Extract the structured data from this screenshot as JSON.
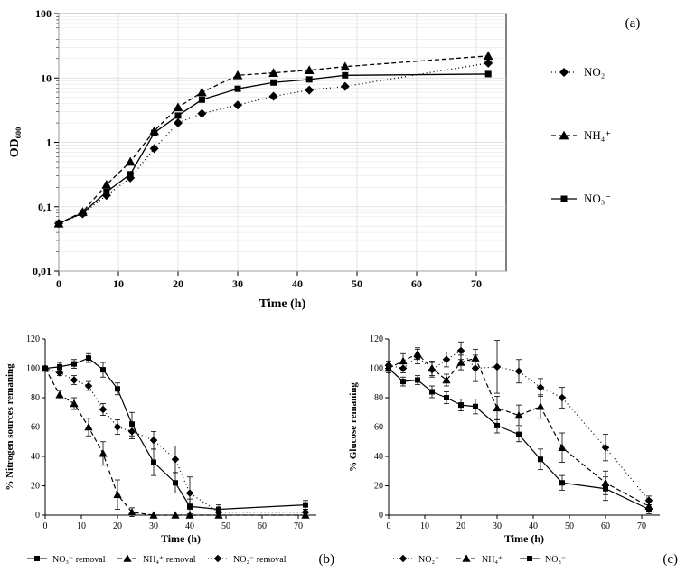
{
  "chartA": {
    "type": "line-log",
    "panel_label": "(a)",
    "xlabel": "Time (h)",
    "ylabel": "OD₆₀₀",
    "xlim": [
      0,
      75
    ],
    "xticks": [
      0,
      10,
      20,
      30,
      40,
      50,
      60,
      70
    ],
    "yticks_log": [
      0.01,
      0.1,
      1,
      10,
      100
    ],
    "ytick_labels": [
      "0,01",
      "0,1",
      "1",
      "10",
      "100"
    ],
    "grid_color": "#d9d9d9",
    "axis_color": "#000000",
    "bg": "#ffffff",
    "series": [
      {
        "name": "NO2-",
        "label": "NO₂⁻",
        "marker": "diamond",
        "dash": "1 3",
        "color": "#000000",
        "x": [
          0,
          4,
          8,
          12,
          16,
          20,
          24,
          30,
          36,
          42,
          48,
          72
        ],
        "y": [
          0.055,
          0.078,
          0.15,
          0.28,
          0.8,
          2.0,
          2.8,
          3.8,
          5.2,
          6.5,
          7.4,
          17.0
        ]
      },
      {
        "name": "NH4+",
        "label": "NH₄⁺",
        "marker": "triangle",
        "dash": "5 3",
        "color": "#000000",
        "x": [
          0,
          4,
          8,
          12,
          16,
          20,
          24,
          30,
          36,
          42,
          48,
          72
        ],
        "y": [
          0.055,
          0.083,
          0.22,
          0.5,
          1.5,
          3.5,
          6.0,
          11.0,
          12.0,
          13.2,
          15.0,
          22.0
        ]
      },
      {
        "name": "NO3-",
        "label": "NO₃⁻",
        "marker": "square",
        "dash": "",
        "color": "#000000",
        "x": [
          0,
          4,
          8,
          12,
          16,
          20,
          24,
          30,
          36,
          42,
          48,
          72
        ],
        "y": [
          0.055,
          0.08,
          0.17,
          0.32,
          1.4,
          2.6,
          4.6,
          6.8,
          8.5,
          9.5,
          11.0,
          11.5
        ]
      }
    ],
    "legend": [
      {
        "marker": "diamond",
        "dash": "1 3",
        "label": "NO₂⁻"
      },
      {
        "marker": "triangle",
        "dash": "5 3",
        "label": "NH₄⁺"
      },
      {
        "marker": "square",
        "dash": "",
        "label": "NO₃⁻"
      }
    ]
  },
  "chartB": {
    "type": "line",
    "panel_label": "(b)",
    "xlabel": "Time (h)",
    "ylabel": "% Nitrogen sources remaning",
    "xlim": [
      0,
      75
    ],
    "ylim": [
      0,
      120
    ],
    "xticks": [
      0,
      10,
      20,
      30,
      40,
      50,
      60,
      70
    ],
    "yticks": [
      0,
      20,
      40,
      60,
      80,
      100,
      120
    ],
    "grid_color": "#e5e5e5",
    "axis_color": "#000000",
    "series": [
      {
        "name": "NO3- removal",
        "label": "NO₃⁻ removal",
        "marker": "square",
        "dash": "",
        "color": "#000000",
        "x": [
          0,
          4,
          8,
          12,
          16,
          20,
          24,
          30,
          36,
          40,
          48,
          72
        ],
        "y": [
          100,
          101,
          103,
          107,
          99,
          86,
          62,
          36,
          22,
          6,
          4,
          7
        ],
        "err": [
          0,
          3,
          3,
          3,
          5,
          4,
          8,
          9,
          7,
          5,
          3,
          3
        ]
      },
      {
        "name": "NH4+ removal",
        "label": "NH₄⁺ removal",
        "marker": "triangle",
        "dash": "5 3",
        "color": "#000000",
        "x": [
          0,
          4,
          8,
          12,
          16,
          20,
          24,
          30,
          36,
          40,
          48,
          72
        ],
        "y": [
          100,
          82,
          76,
          60,
          42,
          14,
          2,
          0,
          0,
          0,
          0,
          0
        ],
        "err": [
          0,
          3,
          4,
          6,
          8,
          10,
          3,
          0,
          0,
          0,
          0,
          0
        ]
      },
      {
        "name": "NO2- removal",
        "label": "NO₂⁻ removal",
        "marker": "diamond",
        "dash": "1 3",
        "color": "#000000",
        "x": [
          0,
          4,
          8,
          12,
          16,
          20,
          24,
          30,
          36,
          40,
          48,
          72
        ],
        "y": [
          100,
          97,
          92,
          88,
          72,
          60,
          57,
          51,
          38,
          15,
          2,
          2
        ],
        "err": [
          0,
          2,
          3,
          3,
          4,
          5,
          5,
          6,
          9,
          11,
          3,
          2
        ]
      }
    ],
    "legend": [
      {
        "marker": "square",
        "dash": "",
        "label": "NO₃⁻ removal"
      },
      {
        "marker": "triangle",
        "dash": "5 3",
        "label": "NH₄⁺ removal"
      },
      {
        "marker": "diamond",
        "dash": "1 3",
        "label": "NO₂⁻ removal"
      }
    ]
  },
  "chartC": {
    "type": "line",
    "panel_label": "(c)",
    "xlabel": "Time (h)",
    "ylabel": "% Glucose remaning",
    "xlim": [
      0,
      75
    ],
    "ylim": [
      0,
      120
    ],
    "xticks": [
      0,
      10,
      20,
      30,
      40,
      50,
      60,
      70
    ],
    "yticks": [
      0,
      20,
      40,
      60,
      80,
      100,
      120
    ],
    "grid_color": "#e5e5e5",
    "axis_color": "#000000",
    "series": [
      {
        "name": "NO2-",
        "label": "NO₂⁻",
        "marker": "diamond",
        "dash": "1 3",
        "color": "#000000",
        "x": [
          0,
          4,
          8,
          12,
          16,
          20,
          24,
          30,
          36,
          42,
          48,
          60,
          72
        ],
        "y": [
          102,
          100,
          108,
          99,
          106,
          112,
          100,
          101,
          98,
          87,
          80,
          46,
          10
        ],
        "err": [
          3,
          3,
          5,
          5,
          5,
          6,
          9,
          18,
          8,
          6,
          7,
          9,
          3
        ]
      },
      {
        "name": "NH4+",
        "label": "NH₄⁺",
        "marker": "triangle",
        "dash": "5 3",
        "color": "#000000",
        "x": [
          0,
          4,
          8,
          12,
          16,
          20,
          24,
          30,
          36,
          42,
          48,
          60,
          72
        ],
        "y": [
          100,
          105,
          110,
          100,
          92,
          104,
          107,
          73,
          68,
          74,
          46,
          22,
          6
        ],
        "err": [
          3,
          5,
          4,
          5,
          4,
          5,
          6,
          8,
          7,
          8,
          10,
          8,
          3
        ]
      },
      {
        "name": "NO3-",
        "label": "NO₃⁻",
        "marker": "square",
        "dash": "",
        "color": "#000000",
        "x": [
          0,
          4,
          8,
          12,
          16,
          20,
          24,
          30,
          36,
          42,
          48,
          60,
          72
        ],
        "y": [
          100,
          91,
          92,
          84,
          80,
          75,
          74,
          61,
          55,
          38,
          22,
          18,
          4
        ],
        "err": [
          2,
          3,
          3,
          4,
          4,
          4,
          5,
          5,
          5,
          7,
          5,
          8,
          3
        ]
      }
    ],
    "legend": [
      {
        "marker": "diamond",
        "dash": "1 3",
        "label": "NO₂⁻"
      },
      {
        "marker": "triangle",
        "dash": "5 3",
        "label": "NH₄⁺"
      },
      {
        "marker": "square",
        "dash": "",
        "label": "NO₃⁻"
      }
    ]
  }
}
